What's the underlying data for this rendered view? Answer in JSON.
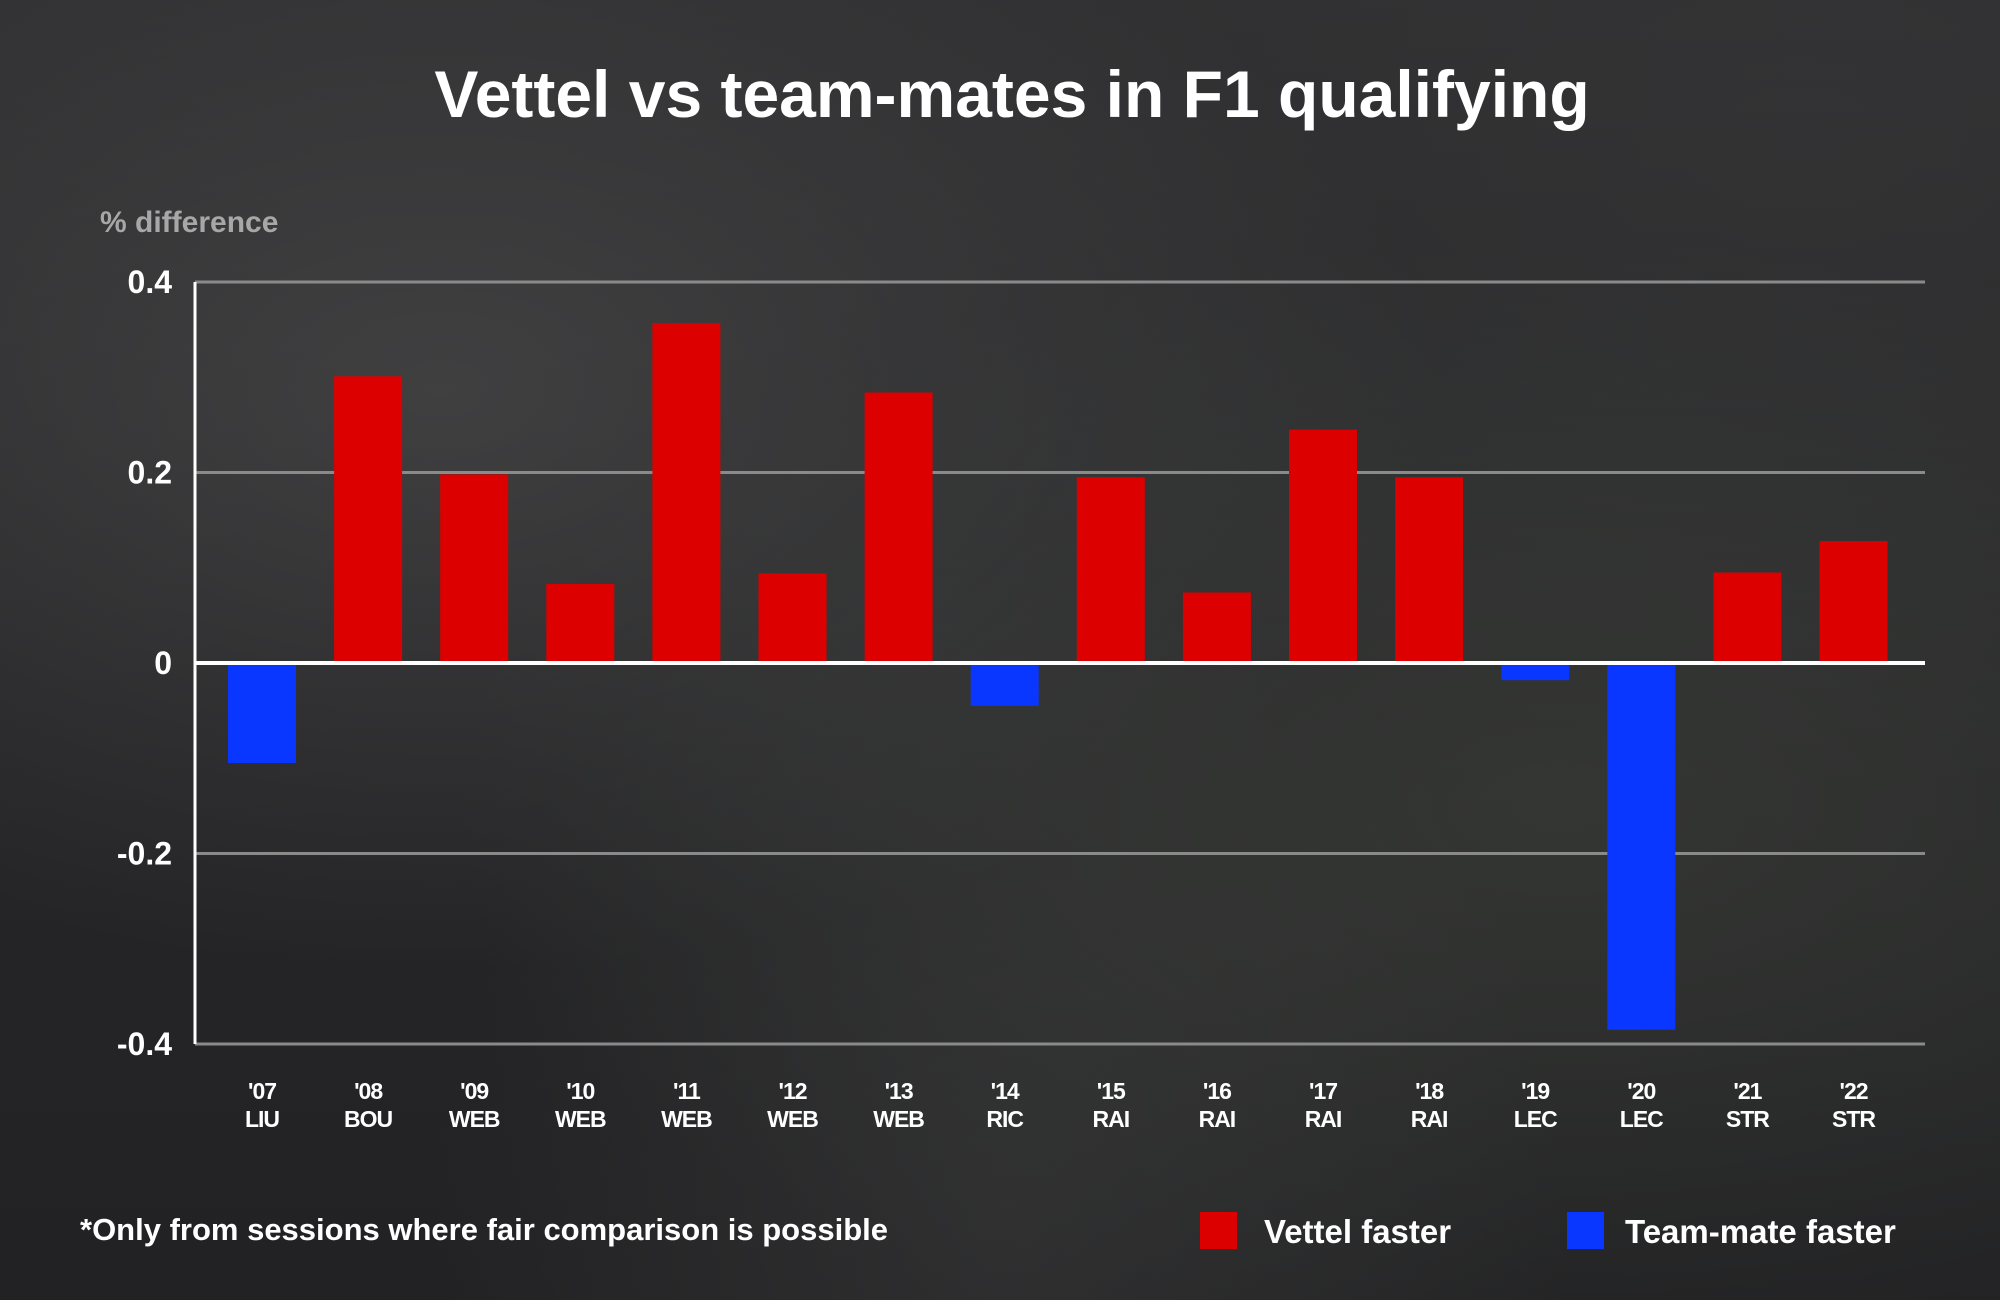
{
  "chart_data": {
    "type": "bar",
    "title": "Vettel vs team-mates in F1 qualifying",
    "ylabel": "% difference",
    "xlabel": "",
    "ylim": [
      -0.4,
      0.4
    ],
    "yticks": [
      0.4,
      0.2,
      0,
      -0.2,
      -0.4
    ],
    "ytick_labels": [
      "0.4",
      "0.2",
      "0",
      "-0.2",
      "-0.4"
    ],
    "categories": [
      {
        "year": "'07",
        "mate": "LIU"
      },
      {
        "year": "'08",
        "mate": "BOU"
      },
      {
        "year": "'09",
        "mate": "WEB"
      },
      {
        "year": "'10",
        "mate": "WEB"
      },
      {
        "year": "'11",
        "mate": "WEB"
      },
      {
        "year": "'12",
        "mate": "WEB"
      },
      {
        "year": "'13",
        "mate": "WEB"
      },
      {
        "year": "'14",
        "mate": "RIC"
      },
      {
        "year": "'15",
        "mate": "RAI"
      },
      {
        "year": "'16",
        "mate": "RAI"
      },
      {
        "year": "'17",
        "mate": "RAI"
      },
      {
        "year": "'18",
        "mate": "RAI"
      },
      {
        "year": "'19",
        "mate": "LEC"
      },
      {
        "year": "'20",
        "mate": "LEC"
      },
      {
        "year": "'21",
        "mate": "STR"
      },
      {
        "year": "'22",
        "mate": "STR"
      }
    ],
    "values": [
      -0.105,
      0.301,
      0.198,
      0.083,
      0.357,
      0.094,
      0.284,
      -0.045,
      0.195,
      0.074,
      0.245,
      0.195,
      -0.018,
      -0.385,
      0.095,
      0.128
    ],
    "grid": true,
    "legend": {
      "placement": "bottom-right",
      "entries": [
        {
          "label": "Vettel faster",
          "color": "#dd0000"
        },
        {
          "label": "Team-mate faster",
          "color": "#0a37ff"
        }
      ]
    },
    "footnote": "*Only from sessions where fair comparison is possible"
  },
  "colors": {
    "positive": "#dd0000",
    "negative": "#0a37ff",
    "gridline": "#8a8a8a",
    "zero_line": "#ffffff",
    "axis": "#ffffff"
  }
}
